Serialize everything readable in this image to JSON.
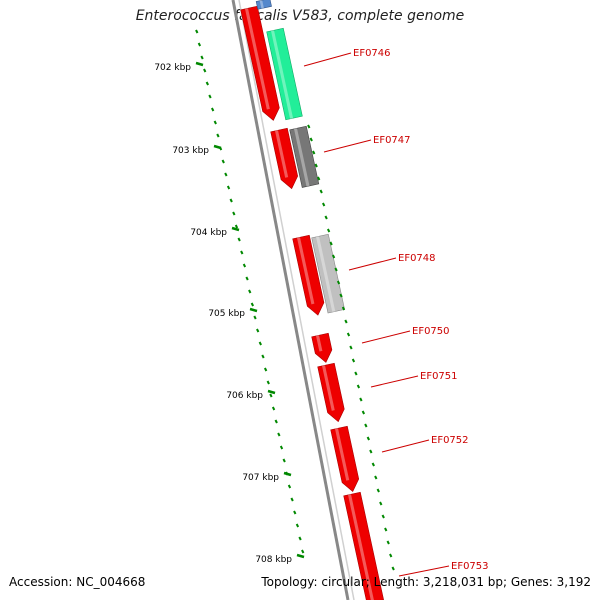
{
  "title": "Enterococcus faecalis V583, complete genome",
  "footer": {
    "accession": "Accession: NC_004668",
    "summary": "Topology: circular; Length: 3,218,031 bp; Genes: 3,192"
  },
  "colors": {
    "cds": "#ee0000",
    "cds_dark": "#aa0000",
    "ruler": "#008800",
    "backbone": "#888888",
    "label": "#cc0000",
    "feature_green": "#22ee99",
    "feature_grey": "#777777",
    "feature_light_grey": "#c0c0c0",
    "feature_blue": "#5588cc"
  },
  "ruler": {
    "kbp_labels": [
      "702 kbp",
      "703 kbp",
      "704 kbp",
      "705 kbp",
      "706 kbp",
      "707 kbp",
      "708 kbp"
    ]
  },
  "genes": [
    {
      "name": "EF0746"
    },
    {
      "name": "EF0747"
    },
    {
      "name": "EF0748"
    },
    {
      "name": "EF0750"
    },
    {
      "name": "EF0751"
    },
    {
      "name": "EF0752"
    },
    {
      "name": "EF0753"
    }
  ]
}
